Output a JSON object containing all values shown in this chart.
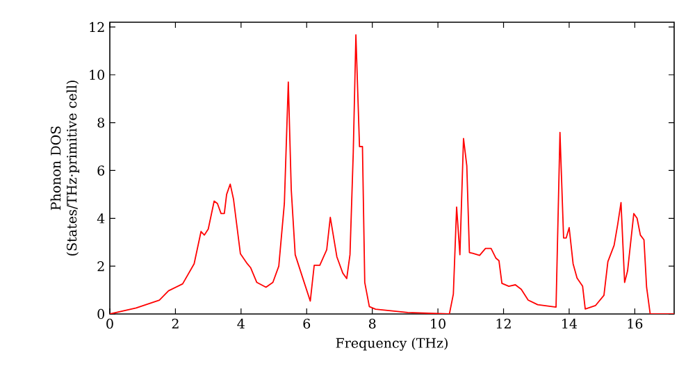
{
  "chart_data": {
    "type": "line",
    "xlabel": "Frequency (THz)",
    "ylabel": "Phonon DOS (States/THz·primitive cell)",
    "xlim": [
      0,
      17.2
    ],
    "ylim": [
      0,
      12.2
    ],
    "xticks": [
      0,
      2,
      4,
      6,
      8,
      10,
      12,
      14,
      16
    ],
    "yticks": [
      0,
      2,
      4,
      6,
      8,
      10,
      12
    ],
    "grid": false,
    "marker": "none",
    "line_style": "solid",
    "series": [
      {
        "color": "#ff0000",
        "x": [
          0,
          0.8,
          1.51,
          1.79,
          2.22,
          2.57,
          2.78,
          2.88,
          3.0,
          3.18,
          3.28,
          3.39,
          3.49,
          3.56,
          3.67,
          3.77,
          3.98,
          4.19,
          4.29,
          4.48,
          4.76,
          4.97,
          5.15,
          5.32,
          5.44,
          5.53,
          5.65,
          5.9,
          6.11,
          6.23,
          6.4,
          6.61,
          6.72,
          6.92,
          7.1,
          7.22,
          7.32,
          7.42,
          7.5,
          7.61,
          7.7,
          7.77,
          7.91,
          8.1,
          9.08,
          10.35,
          10.47,
          10.57,
          10.67,
          10.78,
          10.88,
          10.96,
          11.06,
          11.27,
          11.45,
          11.62,
          11.77,
          11.86,
          11.95,
          12.16,
          12.36,
          12.54,
          12.75,
          13.04,
          13.6,
          13.72,
          13.83,
          13.91,
          14.0,
          14.12,
          14.24,
          14.41,
          14.49,
          14.8,
          15.06,
          15.18,
          15.37,
          15.48,
          15.58,
          15.69,
          15.78,
          15.97,
          16.07,
          16.17,
          16.28,
          16.36,
          16.47,
          17.2
        ],
        "values": [
          0,
          0.25,
          0.58,
          0.97,
          1.26,
          2.1,
          3.45,
          3.3,
          3.55,
          4.72,
          4.62,
          4.2,
          4.2,
          5.0,
          5.43,
          4.8,
          2.52,
          2.1,
          1.94,
          1.32,
          1.12,
          1.32,
          2.0,
          4.62,
          9.7,
          5.2,
          2.48,
          1.42,
          0.54,
          2.04,
          2.04,
          2.68,
          4.04,
          2.39,
          1.71,
          1.48,
          2.48,
          6.76,
          11.67,
          7.0,
          7.0,
          1.32,
          0.31,
          0.2,
          0.06,
          0.0,
          0.83,
          4.47,
          2.48,
          7.34,
          6.2,
          2.57,
          2.54,
          2.45,
          2.74,
          2.74,
          2.33,
          2.23,
          1.28,
          1.16,
          1.22,
          1.03,
          0.58,
          0.39,
          0.29,
          7.59,
          3.18,
          3.18,
          3.61,
          2.1,
          1.5,
          1.16,
          0.21,
          0.35,
          0.78,
          2.19,
          2.87,
          3.75,
          4.66,
          1.32,
          1.8,
          4.2,
          4.0,
          3.3,
          3.1,
          1.12,
          0,
          0
        ]
      }
    ]
  }
}
